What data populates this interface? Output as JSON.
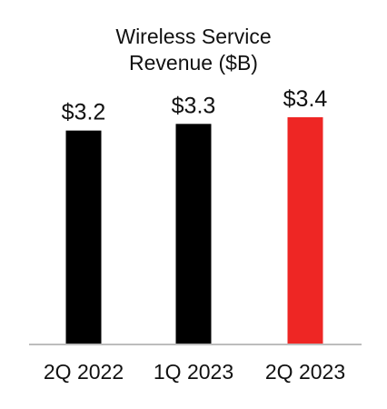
{
  "chart_data": {
    "type": "bar",
    "title": [
      "Wireless Service",
      "Revenue ($B)"
    ],
    "categories": [
      "2Q 2022",
      "1Q 2023",
      "2Q 2023"
    ],
    "values": [
      3.2,
      3.3,
      3.4
    ],
    "data_labels": [
      "$3.2",
      "$3.3",
      "$3.4"
    ],
    "colors": [
      "#000000",
      "#000000",
      "#ee2624"
    ],
    "axis_color": "#bdbdbd",
    "xlabel": "",
    "ylabel": "",
    "ylim": [
      0,
      3.4
    ],
    "grid": false,
    "legend": "none"
  }
}
